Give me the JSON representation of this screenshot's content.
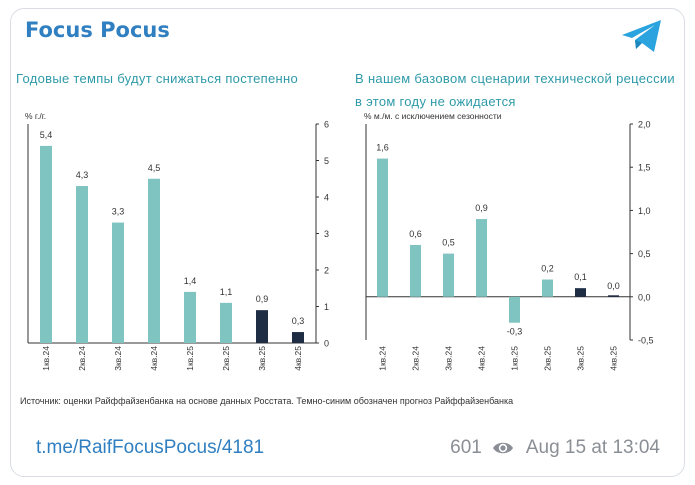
{
  "post": {
    "channel_name": "Focus Pocus",
    "link": "t.me/RaifFocusPocus/4181",
    "views": "601",
    "timestamp": "Aug 15 at 13:04",
    "source_note": "Источник: оценки Райффайзенбанка на основе данных Росстата. Темно-синим обозначен прогноз Райффайзенбанка"
  },
  "icons": {
    "telegram": "telegram-plane-icon",
    "views": "eye-icon"
  },
  "colors": {
    "brand": "#2f7fc1",
    "teal_bar": "#7fc4c0",
    "forecast_bar": "#1f2d44",
    "chart_title": "#2e9aa8"
  },
  "chart_data": [
    {
      "type": "bar",
      "title": "Годовые темпы будут снижаться постепенно",
      "ylabel": "% г./г.",
      "categories": [
        "1кв.24",
        "2кв.24",
        "3кв.24",
        "4кв.24",
        "1кв.25",
        "2кв.25",
        "3кв.25",
        "4кв.25"
      ],
      "values": [
        5.4,
        4.3,
        3.3,
        4.5,
        1.4,
        1.1,
        0.9,
        0.3
      ],
      "value_labels": [
        "5,4",
        "4,3",
        "3,3",
        "4,5",
        "1,4",
        "1,1",
        "0,9",
        "0,3"
      ],
      "forecast": [
        false,
        false,
        false,
        false,
        false,
        false,
        true,
        true
      ],
      "ylim": [
        0,
        6
      ],
      "yticks": [
        "0",
        "1",
        "2",
        "3",
        "4",
        "5",
        "6"
      ],
      "yaxis_side": "right",
      "grid": false
    },
    {
      "type": "bar",
      "title": "В нашем базовом сценарии технической рецессии в этом году не ожидается",
      "ylabel": "% м./м. с исключением сезонности",
      "categories": [
        "1кв.24",
        "2кв.24",
        "3кв.24",
        "4кв.24",
        "1кв.25",
        "2кв.25",
        "3кв.25",
        "4кв.25"
      ],
      "values": [
        1.6,
        0.6,
        0.5,
        0.9,
        -0.3,
        0.2,
        0.1,
        0.0
      ],
      "value_labels": [
        "1,6",
        "0,6",
        "0,5",
        "0,9",
        "-0,3",
        "0,2",
        "0,1",
        "0,0"
      ],
      "forecast": [
        false,
        false,
        false,
        false,
        false,
        false,
        true,
        true
      ],
      "ylim": [
        -0.5,
        2.0
      ],
      "yticks": [
        "-0,5",
        "0,0",
        "0,5",
        "1,0",
        "1,5",
        "2,0"
      ],
      "yaxis_side": "right",
      "grid": false
    }
  ]
}
